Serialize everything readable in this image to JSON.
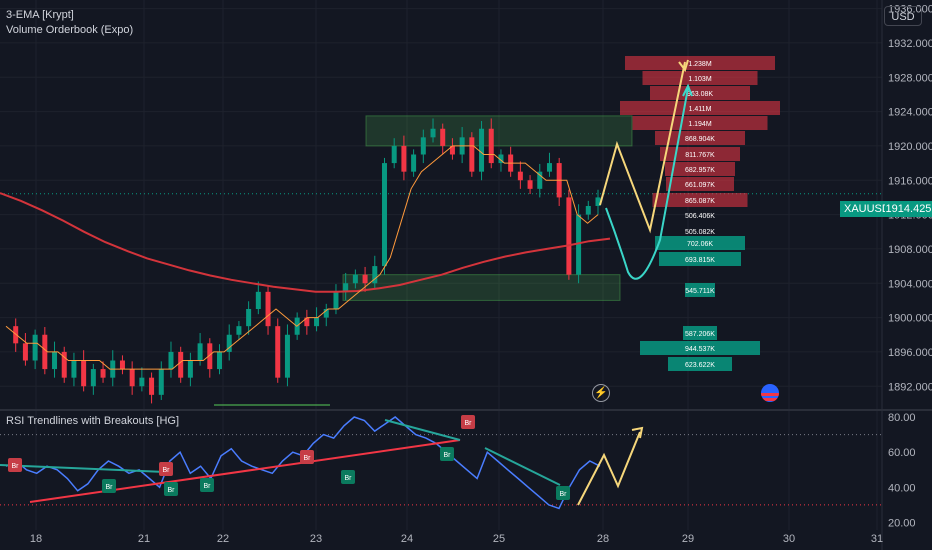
{
  "indicators": [
    "3-EMA [Krypt]",
    "Volume Orderbook (Expo)"
  ],
  "rsi_title": "RSI Trendlines with Breakouts [HG]",
  "currency": "USD",
  "symbol": "XAUUSD",
  "last_price": "1914.425",
  "chart_data": {
    "type": "candlestick",
    "x_tick_labels": [
      "18",
      "21",
      "22",
      "23",
      "24",
      "25",
      "28",
      "29",
      "30",
      "31"
    ],
    "price_axis": {
      "range": [
        1889,
        1937
      ],
      "ticks": [
        "1936.000",
        "1932.000",
        "1928.000",
        "1924.000",
        "1920.000",
        "1916.000",
        "1912.000",
        "1908.000",
        "1904.000",
        "1900.000",
        "1896.000",
        "1892.000"
      ]
    },
    "rsi_axis": {
      "range": [
        18,
        84
      ],
      "ticks": [
        "80.00",
        "60.00",
        "40.00",
        "20.00"
      ]
    },
    "price_path": [
      1899,
      1897,
      1895,
      1898,
      1894,
      1896,
      1893,
      1895,
      1892,
      1894,
      1893,
      1895,
      1894,
      1892,
      1893,
      1891,
      1894,
      1896,
      1893,
      1895,
      1897,
      1894,
      1896,
      1898,
      1899,
      1901,
      1903,
      1899,
      1893,
      1898,
      1900,
      1899,
      1900,
      1901,
      1903,
      1904,
      1905,
      1904,
      1906,
      1918,
      1920,
      1917,
      1919,
      1921,
      1922,
      1920,
      1919,
      1921,
      1917,
      1922,
      1918,
      1919,
      1917,
      1916,
      1915,
      1917,
      1918,
      1914,
      1905,
      1912,
      1913,
      1914
    ],
    "rsi_path": [
      52,
      55,
      50,
      48,
      52,
      50,
      45,
      38,
      42,
      50,
      55,
      52,
      48,
      50,
      45,
      40,
      55,
      60,
      48,
      52,
      45,
      58,
      62,
      55,
      52,
      50,
      48,
      55,
      60,
      58,
      65,
      70,
      68,
      75,
      80,
      78,
      72,
      76,
      80,
      75,
      70,
      68,
      65,
      60,
      55,
      50,
      45,
      60,
      55,
      50,
      45,
      40,
      35,
      30,
      28,
      40,
      50,
      55,
      52
    ],
    "ema_fast": [
      1899,
      1898,
      1897,
      1897,
      1896,
      1896,
      1895,
      1895,
      1895,
      1895,
      1894,
      1894,
      1894,
      1894,
      1894,
      1894,
      1894,
      1895,
      1895,
      1895,
      1896,
      1896,
      1897,
      1898,
      1899,
      1900,
      1901,
      1900,
      1899,
      1900,
      1900,
      1901,
      1901,
      1902,
      1903,
      1904,
      1905,
      1907,
      1911,
      1915,
      1917,
      1918,
      1919,
      1920,
      1920,
      1920,
      1919,
      1919,
      1918,
      1918,
      1918,
      1917,
      1916,
      1916,
      1916,
      1912,
      1911,
      1912
    ],
    "ema_slow": [
      1914.5,
      1913.6,
      1912.5,
      1911.3,
      1910.0,
      1908.8,
      1907.8,
      1906.9,
      1906.2,
      1905.5,
      1904.9,
      1904.4,
      1904.0,
      1903.6,
      1903.3,
      1903.0,
      1903.0,
      1903.1,
      1903.4,
      1903.8,
      1904.4,
      1905.0,
      1905.8,
      1906.5,
      1907.1,
      1907.6,
      1908.0,
      1908.4,
      1908.9,
      1909.2
    ],
    "order_book_asks": [
      "1.238M",
      "1.103M",
      "963.08K",
      "1.411M",
      "1.194M",
      "868.904K",
      "811.767K",
      "682.957K",
      "661.097K",
      "865.087K"
    ],
    "order_book_mid": [
      "506.406K",
      "505.082K"
    ],
    "order_book_bids": [
      "702.06K",
      "693.815K",
      "545.711K",
      "587.206K",
      "944.537K",
      "623.622K"
    ],
    "zones": [
      {
        "from": 1920.0,
        "to": 1923.5
      },
      {
        "from": 1902.0,
        "to": 1905.0
      }
    ],
    "rsi_marker_labels": [
      "Br"
    ],
    "colors": {
      "up": "#089981",
      "down": "#f23645",
      "ema_slow": "#d3343b",
      "ema_fast": "#ff9a3c",
      "rsi": "#4a7dff",
      "projection_a": "#f6d77b",
      "projection_b": "#3ad6c8"
    }
  }
}
